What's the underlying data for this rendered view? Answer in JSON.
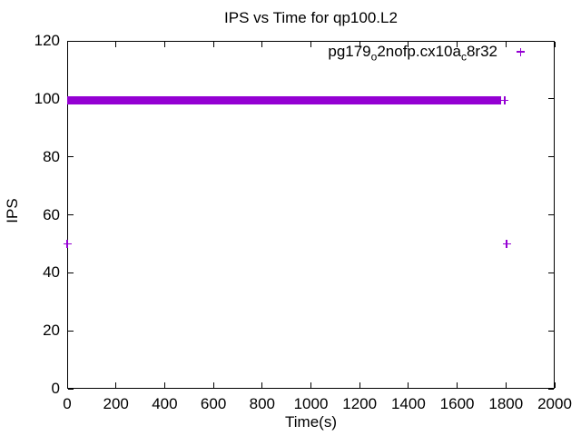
{
  "colors": {
    "series": "#9400D3",
    "frame": "#000000",
    "text": "#000000",
    "background": "#ffffff"
  },
  "legend": {
    "parts": {
      "p1": "pg179",
      "s1": "o",
      "p2": "2nofp.cx10a",
      "s2": "c",
      "p3": "8r32"
    },
    "marker": "plus"
  },
  "chart_data": {
    "type": "scatter",
    "title": "IPS vs Time for qp100.L2",
    "xlabel": "Time(s)",
    "ylabel": "IPS",
    "xlim": [
      0,
      2000
    ],
    "ylim": [
      0,
      120
    ],
    "xticks": [
      0,
      200,
      400,
      600,
      800,
      1000,
      1200,
      1400,
      1600,
      1800,
      2000
    ],
    "yticks": [
      0,
      20,
      40,
      60,
      80,
      100,
      120
    ],
    "grid": false,
    "legend_position": "top-right-inside",
    "series": [
      {
        "name": "pg179_o2nofp.cx10a_c8r32",
        "marker": "plus",
        "color": "#9400D3",
        "dense_band": {
          "t_start": 0,
          "t_end": 1780,
          "ips_min": 99,
          "ips_max": 100
        },
        "isolated_points": [
          [
            0,
            50
          ],
          [
            1795,
            99.5
          ],
          [
            1803,
            50
          ]
        ]
      }
    ]
  }
}
